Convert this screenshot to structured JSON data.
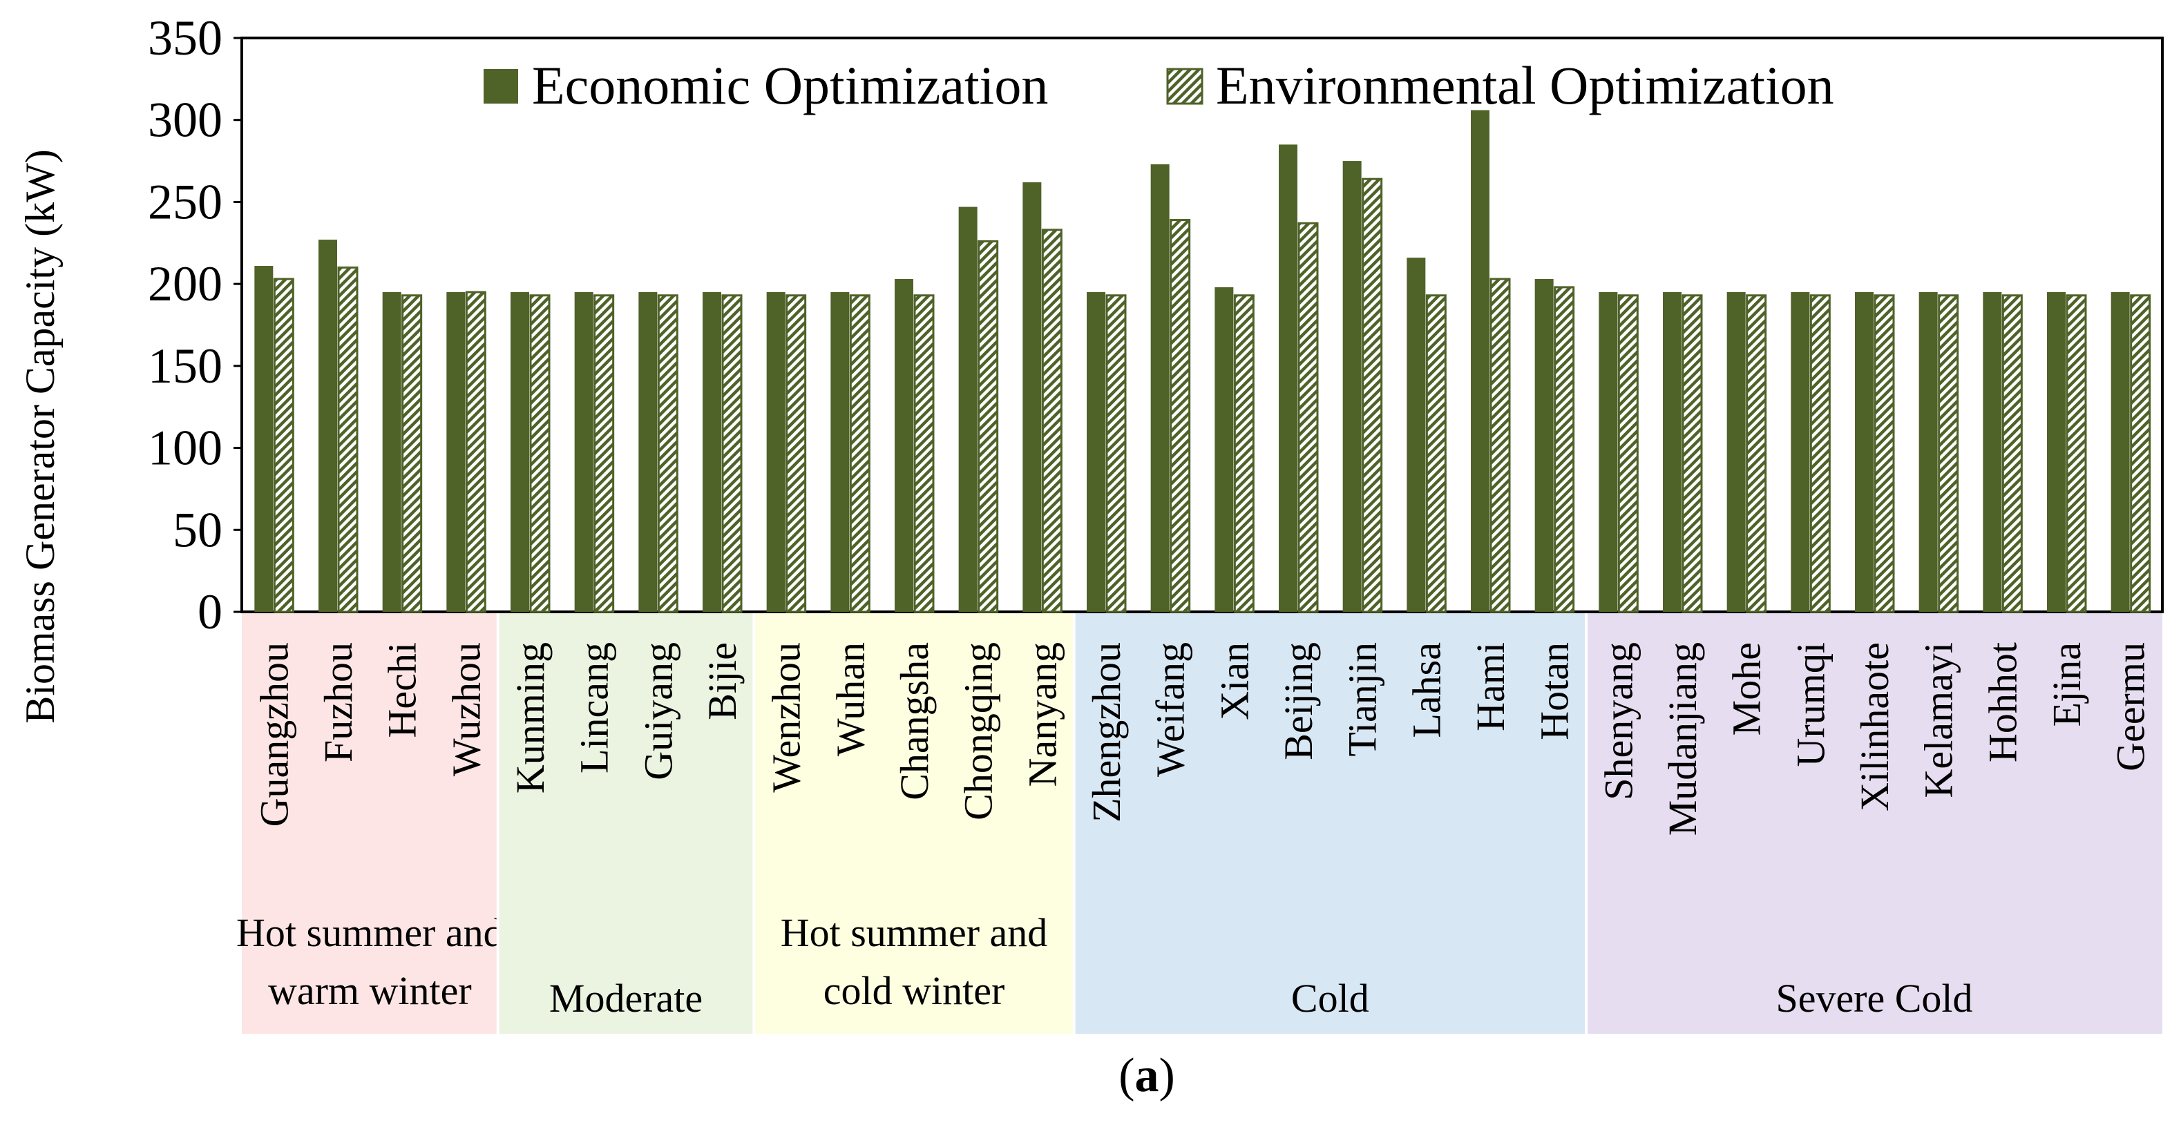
{
  "chart_data": {
    "type": "bar",
    "ylabel": "Biomass Generator Capacity (kW)",
    "ylim": [
      0,
      350
    ],
    "yticks": [
      0,
      50,
      100,
      150,
      200,
      250,
      300,
      350
    ],
    "grid": false,
    "legend_position": "top",
    "caption_letter": "a",
    "categories": [
      "Guangzhou",
      "Fuzhou",
      "Hechi",
      "Wuzhou",
      "Kunming",
      "Lincang",
      "Guiyang",
      "Bijie",
      "Wenzhou",
      "Wuhan",
      "Changsha",
      "Chongqing",
      "Nanyang",
      "Zhengzhou",
      "Weifang",
      "Xian",
      "Beijing",
      "Tianjin",
      "Lahsa",
      "Hami",
      "Hotan",
      "Shenyang",
      "Mudanjiang",
      "Mohe",
      "Urumqi",
      "Xilinhaote",
      "Kelamayi",
      "Hohhot",
      "Ejina",
      "Geermu"
    ],
    "series": [
      {
        "name": "Economic Optimization",
        "pattern": "solid",
        "values": [
          211,
          227,
          195,
          195,
          195,
          195,
          195,
          195,
          195,
          195,
          203,
          247,
          262,
          195,
          273,
          198,
          285,
          275,
          216,
          306,
          203,
          195,
          195,
          195,
          195,
          195,
          195,
          195,
          195,
          195
        ]
      },
      {
        "name": "Environmental Optimization",
        "pattern": "hatched",
        "values": [
          203,
          210,
          193,
          195,
          193,
          193,
          193,
          193,
          193,
          193,
          193,
          226,
          233,
          193,
          239,
          193,
          237,
          264,
          193,
          203,
          198,
          193,
          193,
          193,
          193,
          193,
          193,
          193,
          193,
          193
        ]
      }
    ],
    "climate_zones": [
      {
        "label_lines": [
          "Hot summer and",
          "warm winter"
        ],
        "cities": 4,
        "color": "#fde5e5"
      },
      {
        "label_lines": [
          "Moderate"
        ],
        "cities": 4,
        "color": "#ebf4e1"
      },
      {
        "label_lines": [
          "Hot summer and",
          "cold winter"
        ],
        "cities": 5,
        "color": "#fefee0"
      },
      {
        "label_lines": [
          "Cold"
        ],
        "cities": 8,
        "color": "#d8e7f4"
      },
      {
        "label_lines": [
          "Severe Cold"
        ],
        "cities": 9,
        "color": "#e6def0"
      }
    ],
    "colors": {
      "bar": "#4f6228",
      "hatch": "#4f6228",
      "hatch_bg": "#ffffff"
    }
  }
}
